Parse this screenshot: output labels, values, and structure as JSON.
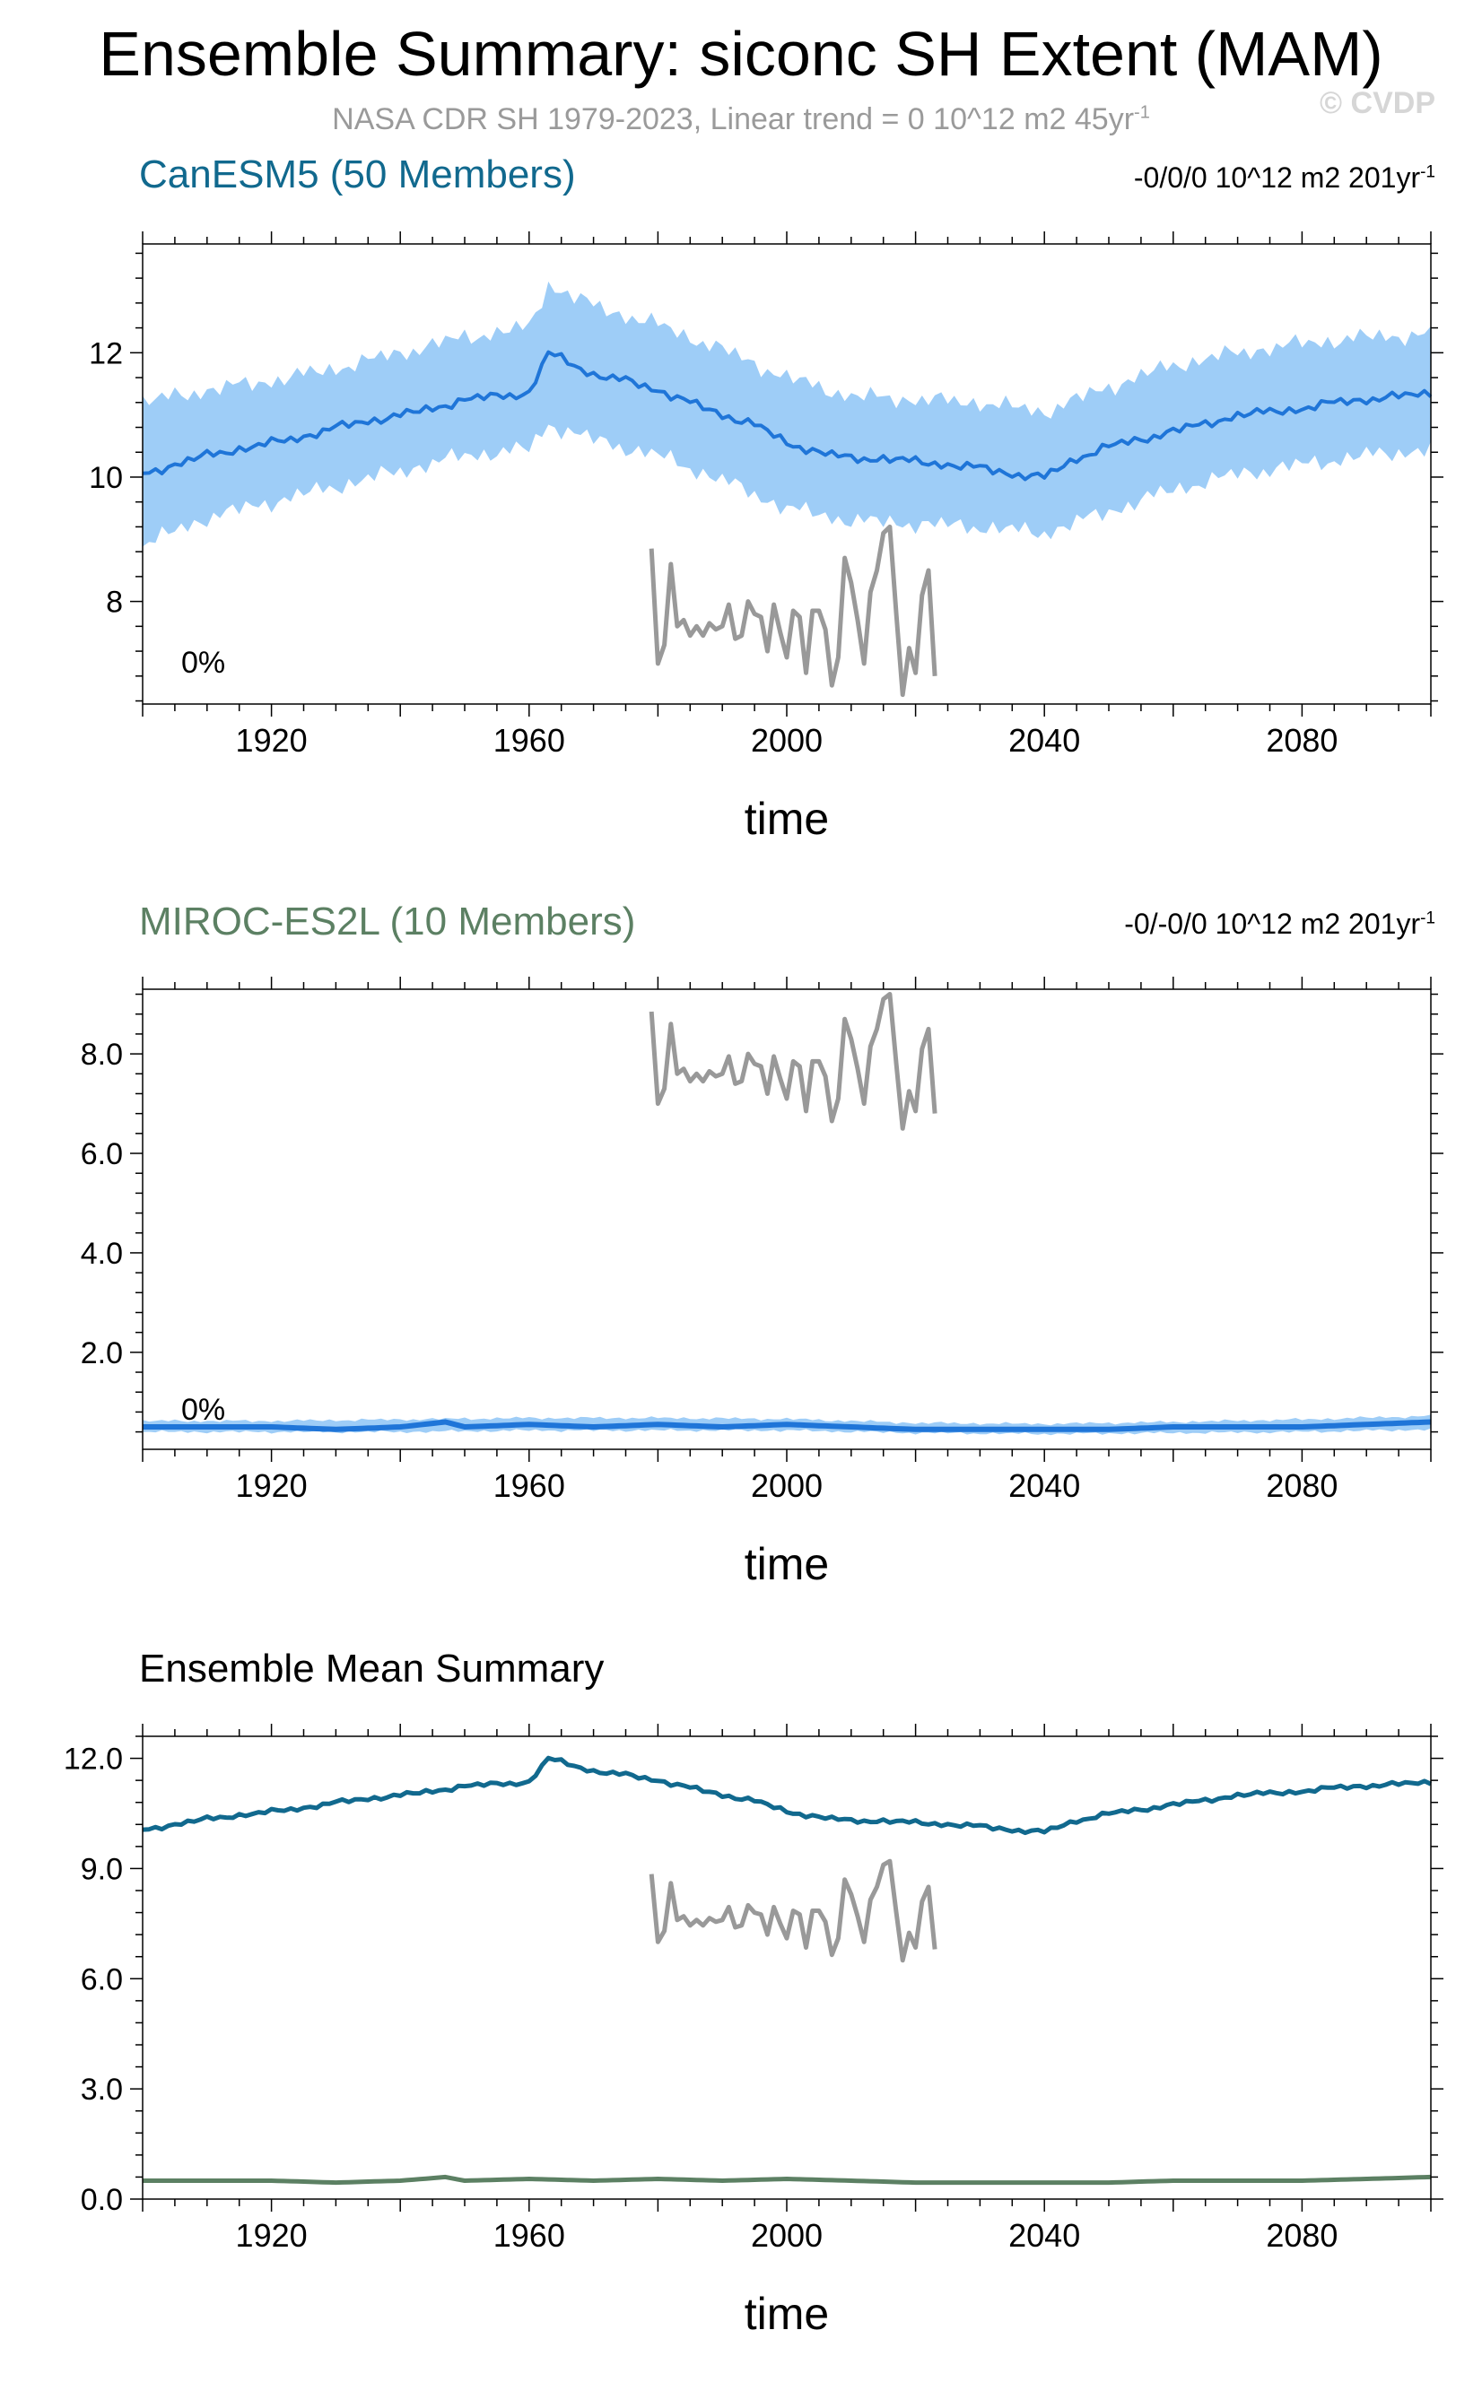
{
  "title": "Ensemble Summary: siconc SH Extent (MAM)",
  "subtitle": {
    "text": "NASA CDR SH 1979-2023, Linear trend = 0 10^12 m2 45yr",
    "superscript": "-1"
  },
  "watermark": "© CVDP",
  "colors": {
    "band_outer": "#9ecdf7",
    "band_inner": "#3a9cf2",
    "ens_mean": "#1f75d8",
    "obs": "#999999",
    "canesm5": "#11698e",
    "miroc": "#5c8063",
    "axis": "#000000"
  },
  "panels": [
    {
      "title": "CanESM5 (50 Members)",
      "trend": "-0/0/0 10^12 m2 201yr",
      "trend_sup": "-1",
      "percent": "0%",
      "xlabel": "time"
    },
    {
      "title": "MIROC-ES2L (10 Members)",
      "trend": "-0/-0/0 10^12 m2 201yr",
      "trend_sup": "-1",
      "percent": "0%",
      "xlabel": "time"
    },
    {
      "title": "Ensemble Mean Summary",
      "xlabel": "time"
    }
  ],
  "chart_data": [
    {
      "type": "area",
      "title": "CanESM5 (50 Members)",
      "xlabel": "time",
      "ylabel": "",
      "xlim": [
        1900,
        2100
      ],
      "ylim": [
        6.35,
        13.75
      ],
      "x_ticks": [
        "1920",
        "1960",
        "2000",
        "2040",
        "2080"
      ],
      "y_ticks": [
        "8",
        "10",
        "12"
      ],
      "grid": false,
      "legend": "none",
      "series": [
        {
          "role": "ensemble_mean",
          "x": [
            1900,
            1905,
            1910,
            1915,
            1920,
            1925,
            1930,
            1935,
            1940,
            1945,
            1950,
            1955,
            1960,
            1963,
            1965,
            1970,
            1975,
            1980,
            1985,
            1990,
            1995,
            2000,
            2005,
            2010,
            2015,
            2020,
            2025,
            2030,
            2035,
            2040,
            2045,
            2050,
            2055,
            2060,
            2065,
            2070,
            2075,
            2080,
            2085,
            2090,
            2095,
            2100
          ],
          "y": [
            10.05,
            10.2,
            10.35,
            10.45,
            10.55,
            10.65,
            10.8,
            10.9,
            11.0,
            11.1,
            11.25,
            11.3,
            11.35,
            12.0,
            11.9,
            11.65,
            11.55,
            11.4,
            11.2,
            11.0,
            10.85,
            10.55,
            10.4,
            10.3,
            10.3,
            10.25,
            10.2,
            10.15,
            10.05,
            10.0,
            10.3,
            10.5,
            10.6,
            10.75,
            10.85,
            11.0,
            11.05,
            11.1,
            11.2,
            11.25,
            11.3,
            11.35
          ]
        },
        {
          "role": "inner_band",
          "x": [
            1900,
            1910,
            1920,
            1930,
            1940,
            1950,
            1960,
            1963,
            1970,
            1980,
            1990,
            2000,
            2010,
            2020,
            2030,
            2040,
            2050,
            2060,
            2070,
            2080,
            2090,
            2100
          ],
          "lower": [
            9.45,
            9.9,
            10.1,
            10.35,
            10.55,
            10.75,
            10.85,
            11.4,
            11.1,
            10.85,
            10.45,
            10.0,
            9.75,
            9.75,
            9.7,
            9.55,
            9.95,
            10.25,
            10.5,
            10.65,
            10.75,
            10.85
          ],
          "upper": [
            10.65,
            10.85,
            11.05,
            11.25,
            11.45,
            11.75,
            11.9,
            12.55,
            12.2,
            11.95,
            11.55,
            11.1,
            10.85,
            10.8,
            10.7,
            10.55,
            10.95,
            11.25,
            11.5,
            11.65,
            11.75,
            11.85
          ]
        },
        {
          "role": "outer_band",
          "x": [
            1900,
            1910,
            1920,
            1930,
            1940,
            1950,
            1960,
            1963,
            1970,
            1980,
            1990,
            2000,
            2010,
            2020,
            2030,
            2040,
            2050,
            2060,
            2070,
            2080,
            2090,
            2100
          ],
          "lower": [
            8.9,
            9.35,
            9.6,
            9.85,
            10.1,
            10.35,
            10.45,
            10.85,
            10.6,
            10.35,
            9.95,
            9.5,
            9.3,
            9.25,
            9.2,
            9.1,
            9.45,
            9.8,
            10.05,
            10.2,
            10.35,
            10.45
          ],
          "upper": [
            11.2,
            11.4,
            11.55,
            11.75,
            12.0,
            12.25,
            12.4,
            13.1,
            12.75,
            12.45,
            12.05,
            11.6,
            11.3,
            11.25,
            11.2,
            11.05,
            11.45,
            11.8,
            12.0,
            12.15,
            12.25,
            12.3
          ]
        },
        {
          "name": "NASA CDR SH 1979-2023",
          "role": "observations",
          "x": [
            1979,
            1980,
            1981,
            1982,
            1983,
            1984,
            1985,
            1986,
            1987,
            1988,
            1989,
            1990,
            1991,
            1992,
            1993,
            1994,
            1995,
            1996,
            1997,
            1998,
            1999,
            2000,
            2001,
            2002,
            2003,
            2004,
            2005,
            2006,
            2007,
            2008,
            2009,
            2010,
            2011,
            2012,
            2013,
            2014,
            2015,
            2016,
            2017,
            2018,
            2019,
            2020,
            2021,
            2022,
            2023
          ],
          "y": [
            8.85,
            7.0,
            7.3,
            8.6,
            7.6,
            7.7,
            7.45,
            7.6,
            7.45,
            7.65,
            7.55,
            7.6,
            7.95,
            7.4,
            7.45,
            8.0,
            7.8,
            7.75,
            7.2,
            7.95,
            7.5,
            7.1,
            7.85,
            7.75,
            6.85,
            7.85,
            7.85,
            7.55,
            6.65,
            7.1,
            8.7,
            8.3,
            7.7,
            7.0,
            8.15,
            8.5,
            9.1,
            9.2,
            7.8,
            6.5,
            7.25,
            6.85,
            8.1,
            8.5,
            6.8
          ]
        }
      ]
    },
    {
      "type": "area",
      "title": "MIROC-ES2L (10 Members)",
      "xlabel": "time",
      "ylabel": "",
      "xlim": [
        1900,
        2100
      ],
      "ylim": [
        0.05,
        9.3
      ],
      "x_ticks": [
        "1920",
        "1960",
        "2000",
        "2040",
        "2080"
      ],
      "y_ticks": [
        "2.0",
        "4.0",
        "6.0",
        "8.0"
      ],
      "grid": false,
      "legend": "none",
      "series": [
        {
          "role": "ensemble_mean",
          "x": [
            1900,
            1910,
            1920,
            1930,
            1940,
            1947,
            1950,
            1960,
            1970,
            1980,
            1990,
            2000,
            2010,
            2020,
            2030,
            2040,
            2050,
            2060,
            2070,
            2080,
            2090,
            2100
          ],
          "y": [
            0.5,
            0.5,
            0.5,
            0.45,
            0.5,
            0.6,
            0.5,
            0.55,
            0.5,
            0.55,
            0.5,
            0.55,
            0.5,
            0.45,
            0.45,
            0.45,
            0.45,
            0.5,
            0.5,
            0.5,
            0.55,
            0.6
          ]
        },
        {
          "role": "band",
          "x": [
            1900,
            1920,
            1940,
            1960,
            1980,
            2000,
            2020,
            2040,
            2060,
            2080,
            2100
          ],
          "lower": [
            0.4,
            0.4,
            0.4,
            0.43,
            0.43,
            0.43,
            0.38,
            0.36,
            0.38,
            0.4,
            0.45
          ],
          "upper": [
            0.62,
            0.62,
            0.65,
            0.68,
            0.68,
            0.66,
            0.58,
            0.56,
            0.6,
            0.65,
            0.72
          ]
        },
        {
          "name": "NASA CDR SH 1979-2023",
          "role": "observations",
          "x": [
            1979,
            1980,
            1981,
            1982,
            1983,
            1984,
            1985,
            1986,
            1987,
            1988,
            1989,
            1990,
            1991,
            1992,
            1993,
            1994,
            1995,
            1996,
            1997,
            1998,
            1999,
            2000,
            2001,
            2002,
            2003,
            2004,
            2005,
            2006,
            2007,
            2008,
            2009,
            2010,
            2011,
            2012,
            2013,
            2014,
            2015,
            2016,
            2017,
            2018,
            2019,
            2020,
            2021,
            2022,
            2023
          ],
          "y": [
            8.85,
            7.0,
            7.3,
            8.6,
            7.6,
            7.7,
            7.45,
            7.6,
            7.45,
            7.65,
            7.55,
            7.6,
            7.95,
            7.4,
            7.45,
            8.0,
            7.8,
            7.75,
            7.2,
            7.95,
            7.5,
            7.1,
            7.85,
            7.75,
            6.85,
            7.85,
            7.85,
            7.55,
            6.65,
            7.1,
            8.7,
            8.3,
            7.7,
            7.0,
            8.15,
            8.5,
            9.1,
            9.2,
            7.8,
            6.5,
            7.25,
            6.85,
            8.1,
            8.5,
            6.8
          ]
        }
      ]
    },
    {
      "type": "line",
      "title": "Ensemble Mean Summary",
      "xlabel": "time",
      "ylabel": "",
      "xlim": [
        1900,
        2100
      ],
      "ylim": [
        0,
        12.6
      ],
      "x_ticks": [
        "1920",
        "1960",
        "2000",
        "2040",
        "2080"
      ],
      "y_ticks": [
        "0.0",
        "3.0",
        "6.0",
        "9.0",
        "12.0"
      ],
      "grid": false,
      "legend": "none",
      "series": [
        {
          "name": "CanESM5",
          "x": [
            1900,
            1905,
            1910,
            1915,
            1920,
            1925,
            1930,
            1935,
            1940,
            1945,
            1950,
            1955,
            1960,
            1963,
            1965,
            1970,
            1975,
            1980,
            1985,
            1990,
            1995,
            2000,
            2005,
            2010,
            2015,
            2020,
            2025,
            2030,
            2035,
            2040,
            2045,
            2050,
            2055,
            2060,
            2065,
            2070,
            2075,
            2080,
            2085,
            2090,
            2095,
            2100
          ],
          "y": [
            10.05,
            10.2,
            10.35,
            10.45,
            10.55,
            10.65,
            10.8,
            10.9,
            11.0,
            11.1,
            11.25,
            11.3,
            11.35,
            12.0,
            11.9,
            11.65,
            11.55,
            11.4,
            11.2,
            11.0,
            10.85,
            10.55,
            10.4,
            10.3,
            10.3,
            10.25,
            10.2,
            10.15,
            10.05,
            10.0,
            10.3,
            10.5,
            10.6,
            10.75,
            10.85,
            11.0,
            11.05,
            11.1,
            11.2,
            11.25,
            11.3,
            11.35
          ]
        },
        {
          "name": "MIROC-ES2L",
          "x": [
            1900,
            1910,
            1920,
            1930,
            1940,
            1947,
            1950,
            1960,
            1970,
            1980,
            1990,
            2000,
            2010,
            2020,
            2030,
            2040,
            2050,
            2060,
            2070,
            2080,
            2090,
            2100
          ],
          "y": [
            0.5,
            0.5,
            0.5,
            0.45,
            0.5,
            0.6,
            0.5,
            0.55,
            0.5,
            0.55,
            0.5,
            0.55,
            0.5,
            0.45,
            0.45,
            0.45,
            0.45,
            0.5,
            0.5,
            0.5,
            0.55,
            0.6
          ]
        },
        {
          "name": "NASA CDR SH 1979-2023",
          "role": "observations",
          "x": [
            1979,
            1980,
            1981,
            1982,
            1983,
            1984,
            1985,
            1986,
            1987,
            1988,
            1989,
            1990,
            1991,
            1992,
            1993,
            1994,
            1995,
            1996,
            1997,
            1998,
            1999,
            2000,
            2001,
            2002,
            2003,
            2004,
            2005,
            2006,
            2007,
            2008,
            2009,
            2010,
            2011,
            2012,
            2013,
            2014,
            2015,
            2016,
            2017,
            2018,
            2019,
            2020,
            2021,
            2022,
            2023
          ],
          "y": [
            8.85,
            7.0,
            7.3,
            8.6,
            7.6,
            7.7,
            7.45,
            7.6,
            7.45,
            7.65,
            7.55,
            7.6,
            7.95,
            7.4,
            7.45,
            8.0,
            7.8,
            7.75,
            7.2,
            7.95,
            7.5,
            7.1,
            7.85,
            7.75,
            6.85,
            7.85,
            7.85,
            7.55,
            6.65,
            7.1,
            8.7,
            8.3,
            7.7,
            7.0,
            8.15,
            8.5,
            9.1,
            9.2,
            7.8,
            6.5,
            7.25,
            6.85,
            8.1,
            8.5,
            6.8
          ]
        }
      ]
    }
  ]
}
